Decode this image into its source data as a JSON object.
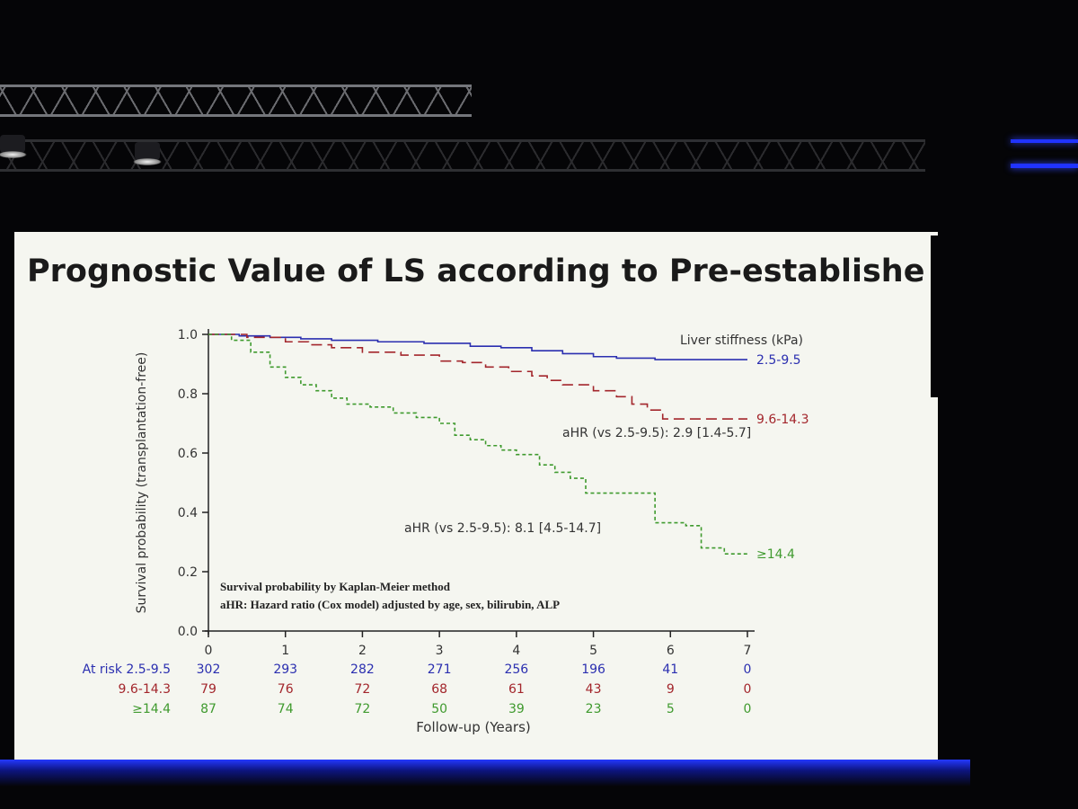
{
  "slide_title": "Prognostic Value of LS according to Pre-established Cut-offs",
  "chart_data": {
    "type": "line",
    "title": "Prognostic Value of LS according to Pre-established Cut-offs",
    "xlabel": "Follow-up (Years)",
    "ylabel": "Survival probability (transplantation-free)",
    "xlim": [
      0,
      7
    ],
    "ylim": [
      0.0,
      1.0
    ],
    "x_ticks": [
      "0",
      "1",
      "2",
      "3",
      "4",
      "5",
      "6",
      "7"
    ],
    "y_ticks": [
      "0.0",
      "0.2",
      "0.4",
      "0.6",
      "0.8",
      "1.0"
    ],
    "grid": false,
    "legend_title": "Liver stiffness (kPa)",
    "series": [
      {
        "name": "2.5-9.5",
        "color": "#2b2fb0",
        "dash": "solid",
        "points": [
          [
            0,
            1.0
          ],
          [
            0.4,
            0.995
          ],
          [
            0.8,
            0.99
          ],
          [
            1.2,
            0.985
          ],
          [
            1.6,
            0.98
          ],
          [
            2.2,
            0.975
          ],
          [
            2.8,
            0.97
          ],
          [
            3.4,
            0.96
          ],
          [
            3.8,
            0.955
          ],
          [
            4.2,
            0.945
          ],
          [
            4.6,
            0.935
          ],
          [
            5.0,
            0.925
          ],
          [
            5.3,
            0.92
          ],
          [
            5.8,
            0.915
          ],
          [
            6.5,
            0.915
          ],
          [
            7.0,
            0.915
          ]
        ]
      },
      {
        "name": "9.6-14.3",
        "color": "#a3262c",
        "dash": "long",
        "points": [
          [
            0,
            1.0
          ],
          [
            0.5,
            0.99
          ],
          [
            1.0,
            0.975
          ],
          [
            1.3,
            0.965
          ],
          [
            1.6,
            0.955
          ],
          [
            2.0,
            0.94
          ],
          [
            2.5,
            0.93
          ],
          [
            3.0,
            0.91
          ],
          [
            3.3,
            0.905
          ],
          [
            3.6,
            0.89
          ],
          [
            3.9,
            0.875
          ],
          [
            4.2,
            0.86
          ],
          [
            4.4,
            0.845
          ],
          [
            4.6,
            0.83
          ],
          [
            5.0,
            0.81
          ],
          [
            5.3,
            0.79
          ],
          [
            5.5,
            0.765
          ],
          [
            5.7,
            0.745
          ],
          [
            5.9,
            0.715
          ],
          [
            6.5,
            0.715
          ],
          [
            7.0,
            0.715
          ]
        ]
      },
      {
        "name": "≥14.4",
        "color": "#3f9a2e",
        "dash": "short",
        "points": [
          [
            0,
            1.0
          ],
          [
            0.3,
            0.98
          ],
          [
            0.55,
            0.94
          ],
          [
            0.8,
            0.89
          ],
          [
            1.0,
            0.855
          ],
          [
            1.2,
            0.83
          ],
          [
            1.4,
            0.81
          ],
          [
            1.6,
            0.785
          ],
          [
            1.8,
            0.765
          ],
          [
            2.1,
            0.755
          ],
          [
            2.4,
            0.735
          ],
          [
            2.7,
            0.72
          ],
          [
            3.0,
            0.7
          ],
          [
            3.2,
            0.66
          ],
          [
            3.4,
            0.645
          ],
          [
            3.6,
            0.625
          ],
          [
            3.8,
            0.61
          ],
          [
            4.0,
            0.595
          ],
          [
            4.3,
            0.56
          ],
          [
            4.5,
            0.535
          ],
          [
            4.7,
            0.515
          ],
          [
            4.9,
            0.465
          ],
          [
            5.6,
            0.465
          ],
          [
            5.8,
            0.365
          ],
          [
            6.2,
            0.355
          ],
          [
            6.4,
            0.28
          ],
          [
            6.7,
            0.26
          ],
          [
            7.0,
            0.26
          ]
        ]
      }
    ],
    "annotations": [
      "aHR (vs 2.5-9.5): 2.9 [1.4-5.7]",
      "aHR (vs 2.5-9.5): 8.1 [4.5-14.7]",
      "Survival probability by Kaplan-Meier method",
      "aHR:  Hazard ratio (Cox model) adjusted by age, sex, bilirubin, ALP"
    ],
    "at_risk": {
      "label": "At risk",
      "rows": [
        {
          "name": "2.5-9.5",
          "color": "#2b2fb0",
          "values": [
            "302",
            "293",
            "282",
            "271",
            "256",
            "196",
            "41",
            "0"
          ]
        },
        {
          "name": "9.6-14.3",
          "color": "#a3262c",
          "values": [
            "79",
            "76",
            "72",
            "68",
            "61",
            "43",
            "9",
            "0"
          ]
        },
        {
          "name": "≥14.4",
          "color": "#3f9a2e",
          "values": [
            "87",
            "74",
            "72",
            "50",
            "39",
            "23",
            "5",
            "0"
          ]
        }
      ]
    }
  }
}
